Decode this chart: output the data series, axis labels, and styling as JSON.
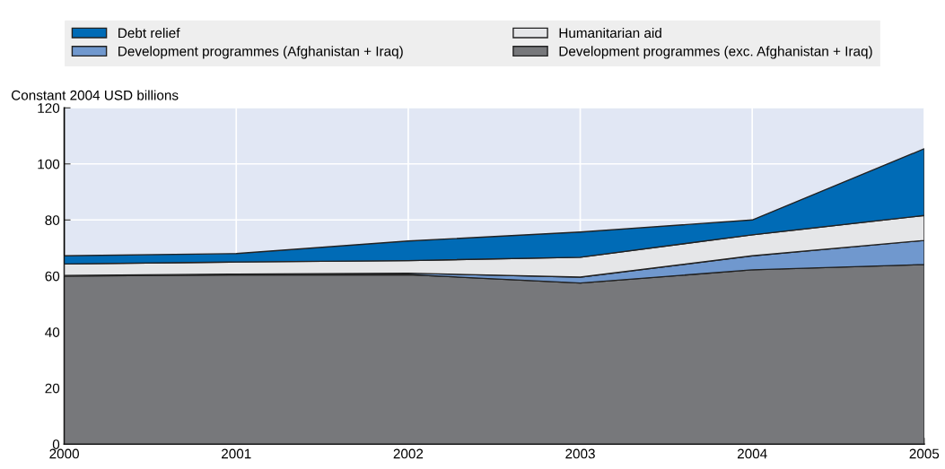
{
  "chart_data": {
    "type": "area",
    "stacked": true,
    "ylabel": "Constant 2004 USD billions",
    "x": [
      2000,
      2001,
      2002,
      2003,
      2004,
      2005
    ],
    "series": [
      {
        "name": "Development programmes (exc. Afghanistan + Iraq)",
        "color": "#77787b",
        "values": [
          60.0,
          60.4,
          60.5,
          57.5,
          62.2,
          64.1
        ]
      },
      {
        "name": "Development programmes (Afghanistan + Iraq)",
        "color": "#7098ce",
        "values": [
          0.2,
          0.3,
          0.5,
          2.1,
          5.0,
          8.6
        ]
      },
      {
        "name": "Humanitarian aid",
        "color": "#e5e6e8",
        "values": [
          4.1,
          4.3,
          4.5,
          7.1,
          7.5,
          8.9
        ]
      },
      {
        "name": "Debt relief",
        "color": "#006bb6",
        "values": [
          2.9,
          3.0,
          7.0,
          9.0,
          5.3,
          23.8
        ]
      }
    ],
    "xlim": [
      2000,
      2005
    ],
    "xticks": [
      2000,
      2001,
      2002,
      2003,
      2004,
      2005
    ],
    "ylim": [
      0,
      120
    ],
    "yticks": [
      0,
      20,
      40,
      60,
      80,
      100,
      120
    ],
    "grid": true,
    "legend": "top"
  }
}
